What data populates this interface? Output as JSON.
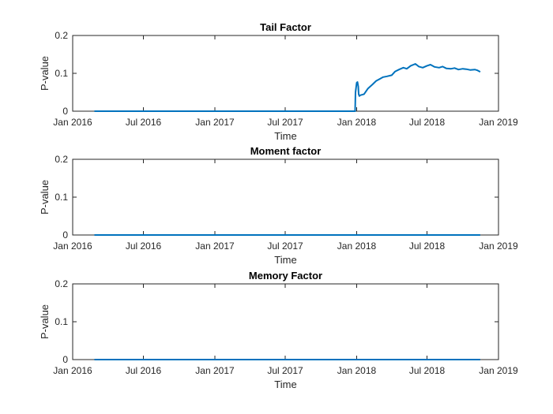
{
  "chart_data": [
    {
      "type": "line",
      "title": "Tail Factor",
      "xlabel": "Time",
      "ylabel": "P-value",
      "x_ticks": [
        "Jan 2016",
        "Jul 2016",
        "Jan 2017",
        "Jul 2017",
        "Jan 2018",
        "Jul 2018",
        "Jan 2019"
      ],
      "x_tick_dates": [
        "2016-01-01",
        "2016-07-01",
        "2017-01-01",
        "2017-07-01",
        "2018-01-01",
        "2018-07-01",
        "2019-01-01"
      ],
      "y_ticks": [
        "0",
        "0.1",
        "0.2"
      ],
      "xlim": [
        "2016-01-01",
        "2019-01-01"
      ],
      "ylim": [
        0,
        0.2
      ],
      "grid": false,
      "line_color": "#0072BD",
      "series": [
        {
          "x": [
            "2016-02-26",
            "2017-12-28",
            "2017-12-29",
            "2018-01-01",
            "2018-01-03",
            "2018-01-05",
            "2018-01-06",
            "2018-01-08",
            "2018-01-10",
            "2018-01-20",
            "2018-01-30",
            "2018-02-10",
            "2018-02-20",
            "2018-03-01",
            "2018-03-10",
            "2018-03-20",
            "2018-04-01",
            "2018-04-10",
            "2018-04-20",
            "2018-05-01",
            "2018-05-10",
            "2018-05-20",
            "2018-06-01",
            "2018-06-10",
            "2018-06-20",
            "2018-07-01",
            "2018-07-10",
            "2018-07-20",
            "2018-08-01",
            "2018-08-10",
            "2018-08-20",
            "2018-09-01",
            "2018-09-10",
            "2018-09-20",
            "2018-10-01",
            "2018-10-10",
            "2018-10-20",
            "2018-11-01",
            "2018-11-08",
            "2018-11-15"
          ],
          "y": [
            0,
            0,
            0.05,
            0.075,
            0.077,
            0.065,
            0.045,
            0.04,
            0.042,
            0.045,
            0.06,
            0.07,
            0.08,
            0.085,
            0.09,
            0.092,
            0.095,
            0.105,
            0.11,
            0.115,
            0.112,
            0.12,
            0.125,
            0.118,
            0.115,
            0.12,
            0.123,
            0.117,
            0.115,
            0.118,
            0.113,
            0.112,
            0.114,
            0.11,
            0.112,
            0.111,
            0.109,
            0.11,
            0.108,
            0.104
          ]
        }
      ]
    },
    {
      "type": "line",
      "title": "Moment factor",
      "xlabel": "Time",
      "ylabel": "P-value",
      "x_ticks": [
        "Jan 2016",
        "Jul 2016",
        "Jan 2017",
        "Jul 2017",
        "Jan 2018",
        "Jul 2018",
        "Jan 2019"
      ],
      "x_tick_dates": [
        "2016-01-01",
        "2016-07-01",
        "2017-01-01",
        "2017-07-01",
        "2018-01-01",
        "2018-07-01",
        "2019-01-01"
      ],
      "y_ticks": [
        "0",
        "0.1",
        "0.2"
      ],
      "xlim": [
        "2016-01-01",
        "2019-01-01"
      ],
      "ylim": [
        0,
        0.2
      ],
      "grid": false,
      "line_color": "#0072BD",
      "series": [
        {
          "x": [
            "2016-02-26",
            "2018-11-15"
          ],
          "y": [
            0,
            0
          ]
        }
      ]
    },
    {
      "type": "line",
      "title": "Memory Factor",
      "xlabel": "Time",
      "ylabel": "P-value",
      "x_ticks": [
        "Jan 2016",
        "Jul 2016",
        "Jan 2017",
        "Jul 2017",
        "Jan 2018",
        "Jul 2018",
        "Jan 2019"
      ],
      "x_tick_dates": [
        "2016-01-01",
        "2016-07-01",
        "2017-01-01",
        "2017-07-01",
        "2018-01-01",
        "2018-07-01",
        "2019-01-01"
      ],
      "y_ticks": [
        "0",
        "0.1",
        "0.2"
      ],
      "xlim": [
        "2016-01-01",
        "2019-01-01"
      ],
      "ylim": [
        0,
        0.2
      ],
      "grid": false,
      "line_color": "#0072BD",
      "series": [
        {
          "x": [
            "2016-02-26",
            "2018-11-15"
          ],
          "y": [
            0,
            0
          ]
        }
      ]
    }
  ]
}
